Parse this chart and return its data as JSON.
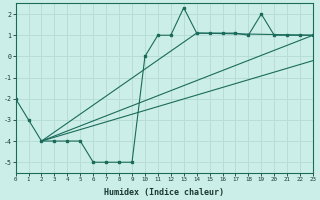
{
  "xlabel": "Humidex (Indice chaleur)",
  "bg_color": "#cceee8",
  "grid_color": "#b8ddd6",
  "line_color": "#1a6b5a",
  "xlim": [
    0,
    23
  ],
  "ylim": [
    -5.5,
    2.5
  ],
  "yticks": [
    -5,
    -4,
    -3,
    -2,
    -1,
    0,
    1,
    2
  ],
  "xticks": [
    0,
    1,
    2,
    3,
    4,
    5,
    6,
    7,
    8,
    9,
    10,
    11,
    12,
    13,
    14,
    15,
    16,
    17,
    18,
    19,
    20,
    21,
    22,
    23
  ],
  "line1_x": [
    0,
    1,
    2,
    3,
    4,
    5,
    6,
    7,
    8,
    9,
    10,
    11,
    12,
    13,
    14,
    15,
    16,
    17,
    18,
    19,
    20,
    21,
    22,
    23
  ],
  "line1_y": [
    -2.0,
    -3.0,
    -4.0,
    -4.0,
    -4.0,
    -4.0,
    -5.0,
    -5.0,
    -5.0,
    -5.0,
    0.0,
    1.0,
    1.0,
    2.3,
    1.1,
    1.1,
    1.1,
    1.1,
    1.0,
    2.0,
    1.0,
    1.0,
    1.0,
    1.0
  ],
  "line2_x": [
    2,
    23
  ],
  "line2_y": [
    -4.0,
    1.0
  ],
  "line3_x": [
    2,
    23
  ],
  "line3_y": [
    -4.0,
    -0.2
  ],
  "line4_x": [
    2,
    14,
    23
  ],
  "line4_y": [
    -4.0,
    1.1,
    1.0
  ]
}
